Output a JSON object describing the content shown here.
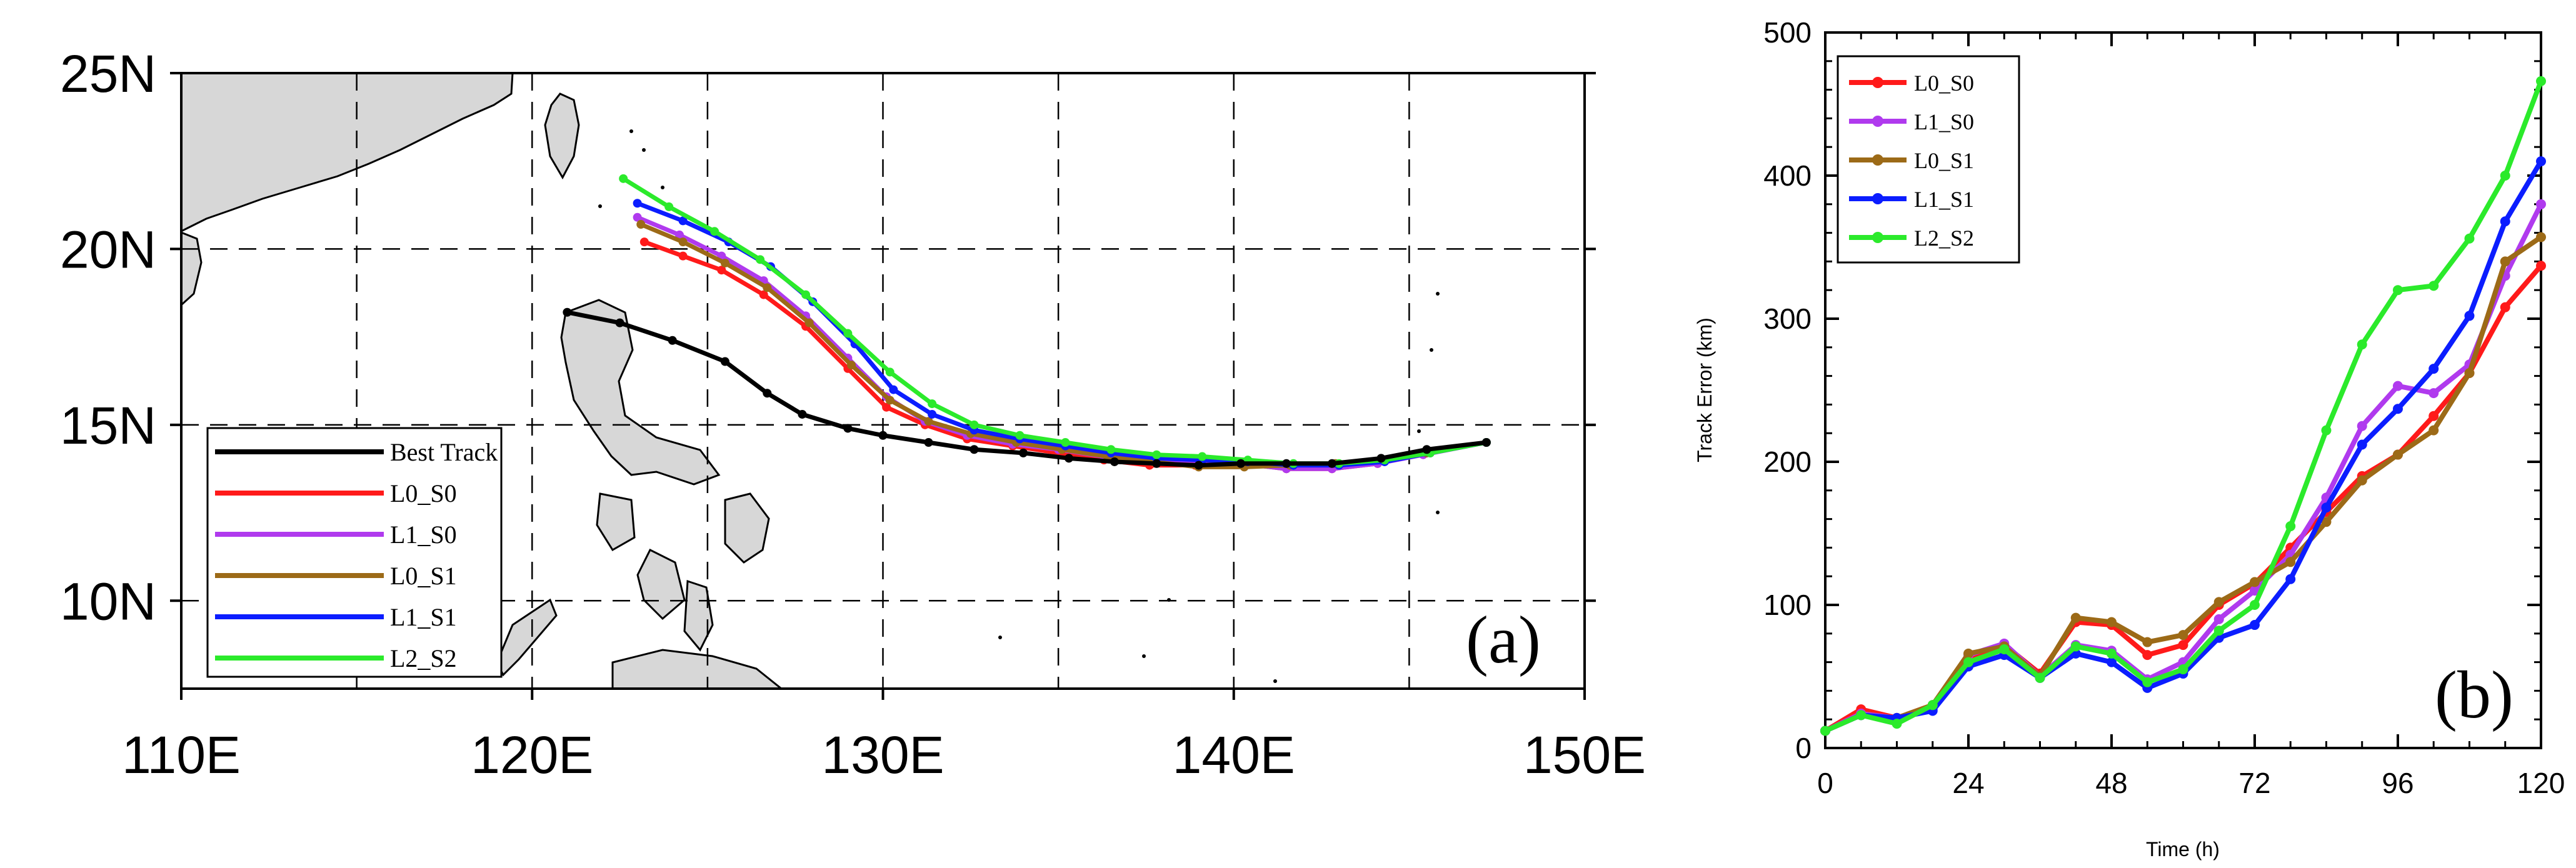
{
  "chart_data": [
    {
      "type": "line",
      "panel_label": "(a)",
      "xlim": [
        110,
        150
      ],
      "ylim": [
        7.5,
        25
      ],
      "x_ticks": [
        {
          "value": 110,
          "label": "110E"
        },
        {
          "value": 120,
          "label": "120E"
        },
        {
          "value": 130,
          "label": "130E"
        },
        {
          "value": 140,
          "label": "140E"
        },
        {
          "value": 150,
          "label": "150E"
        }
      ],
      "y_ticks": [
        {
          "value": 10,
          "label": "10N"
        },
        {
          "value": 15,
          "label": "15N"
        },
        {
          "value": 20,
          "label": "20N"
        },
        {
          "value": 25,
          "label": "25N"
        }
      ],
      "grid_lon": [
        115,
        120,
        125,
        130,
        135,
        140,
        145
      ],
      "grid_lat": [
        10,
        15,
        20
      ],
      "legend": {
        "position": "lower-left",
        "entries": [
          "Best Track",
          "L0_S0",
          "L1_S0",
          "L0_S1",
          "L1_S1",
          "L2_S2"
        ]
      },
      "series": [
        {
          "name": "Best Track",
          "color": "#000000",
          "lon": [
            121.0,
            122.5,
            124.0,
            125.5,
            126.7,
            127.7,
            129.0,
            130.0,
            131.3,
            132.6,
            134.0,
            135.3,
            136.6,
            137.8,
            139.0,
            140.2,
            141.5,
            142.8,
            144.2,
            145.5,
            147.2
          ],
          "lat": [
            18.2,
            17.9,
            17.4,
            16.8,
            15.9,
            15.3,
            14.9,
            14.7,
            14.5,
            14.3,
            14.2,
            14.05,
            13.95,
            13.9,
            13.85,
            13.9,
            13.9,
            13.9,
            14.05,
            14.3,
            14.5
          ]
        },
        {
          "name": "L0_S0",
          "color": "#ff1a1a",
          "lon": [
            123.2,
            124.3,
            125.4,
            126.6,
            127.8,
            129.0,
            130.1,
            131.2,
            132.4,
            133.7,
            135.0,
            136.3,
            137.6,
            138.9,
            140.2,
            141.5,
            142.8,
            144.1,
            145.4,
            147.2
          ],
          "lat": [
            20.2,
            19.8,
            19.4,
            18.7,
            17.8,
            16.6,
            15.5,
            15.0,
            14.6,
            14.4,
            14.2,
            14.0,
            13.85,
            13.85,
            13.9,
            13.75,
            13.75,
            13.9,
            14.2,
            14.5
          ]
        },
        {
          "name": "L1_S0",
          "color": "#b03aee",
          "lon": [
            123.0,
            124.2,
            125.4,
            126.6,
            127.8,
            129.0,
            130.1,
            131.2,
            132.4,
            133.7,
            135.0,
            136.3,
            137.6,
            138.9,
            140.2,
            141.5,
            142.8,
            144.1,
            145.4,
            147.2
          ],
          "lat": [
            20.9,
            20.4,
            19.8,
            19.1,
            18.1,
            16.9,
            15.8,
            15.1,
            14.7,
            14.45,
            14.3,
            14.1,
            14.0,
            13.95,
            13.9,
            13.75,
            13.75,
            13.9,
            14.15,
            14.5
          ]
        },
        {
          "name": "L0_S1",
          "color": "#9c6a17",
          "lon": [
            123.1,
            124.3,
            125.5,
            126.7,
            127.9,
            129.1,
            130.2,
            131.3,
            132.5,
            133.8,
            135.1,
            136.4,
            137.7,
            139.0,
            140.3,
            141.6,
            142.9,
            144.2,
            145.5,
            147.2
          ],
          "lat": [
            20.7,
            20.2,
            19.6,
            18.9,
            17.9,
            16.7,
            15.7,
            15.1,
            14.75,
            14.5,
            14.3,
            14.1,
            13.95,
            13.8,
            13.8,
            13.85,
            13.9,
            14.0,
            14.2,
            14.5
          ]
        },
        {
          "name": "L1_S1",
          "color": "#0b1dff",
          "lon": [
            123.0,
            124.3,
            125.6,
            126.8,
            128.0,
            129.2,
            130.3,
            131.4,
            132.6,
            133.9,
            135.2,
            136.5,
            137.8,
            139.1,
            140.4,
            141.7,
            143.0,
            144.3,
            145.6,
            147.2
          ],
          "lat": [
            21.3,
            20.8,
            20.2,
            19.5,
            18.5,
            17.3,
            16.0,
            15.3,
            14.85,
            14.6,
            14.4,
            14.2,
            14.05,
            14.0,
            13.95,
            13.85,
            13.85,
            13.95,
            14.2,
            14.5
          ]
        },
        {
          "name": "L2_S2",
          "color": "#2bea2b",
          "lon": [
            122.6,
            123.9,
            125.2,
            126.5,
            127.8,
            129.0,
            130.2,
            131.4,
            132.6,
            133.9,
            135.2,
            136.5,
            137.8,
            139.1,
            140.4,
            141.7,
            143.0,
            144.3,
            145.6,
            147.2
          ],
          "lat": [
            22.0,
            21.2,
            20.5,
            19.7,
            18.7,
            17.6,
            16.5,
            15.6,
            15.0,
            14.7,
            14.5,
            14.3,
            14.15,
            14.1,
            14.0,
            13.9,
            13.9,
            14.0,
            14.2,
            14.5
          ]
        }
      ]
    },
    {
      "type": "line",
      "panel_label": "(b)",
      "xlabel": "Time (h)",
      "ylabel": "Track Error (km)",
      "xlim": [
        0,
        120
      ],
      "ylim": [
        0,
        500
      ],
      "x_ticks": [
        0,
        24,
        48,
        72,
        96,
        120
      ],
      "y_ticks": [
        0,
        100,
        200,
        300,
        400,
        500
      ],
      "legend": {
        "position": "top-left",
        "entries": [
          "L0_S0",
          "L1_S0",
          "L0_S1",
          "L1_S1",
          "L2_S2"
        ]
      },
      "x": [
        0,
        6,
        12,
        18,
        24,
        30,
        36,
        42,
        48,
        54,
        60,
        66,
        72,
        78,
        84,
        90,
        96,
        102,
        108,
        114,
        120
      ],
      "series": [
        {
          "name": "L0_S0",
          "color": "#ff1a1a",
          "values": [
            12,
            27,
            21,
            30,
            62,
            72,
            52,
            88,
            86,
            65,
            72,
            100,
            115,
            140,
            165,
            190,
            205,
            232,
            262,
            308,
            337
          ]
        },
        {
          "name": "L1_S0",
          "color": "#b03aee",
          "values": [
            12,
            24,
            21,
            27,
            65,
            73,
            50,
            72,
            68,
            48,
            60,
            90,
            110,
            135,
            175,
            225,
            253,
            248,
            268,
            330,
            380
          ]
        },
        {
          "name": "L0_S1",
          "color": "#9c6a17",
          "values": [
            12,
            23,
            21,
            30,
            66,
            71,
            50,
            91,
            88,
            74,
            79,
            102,
            116,
            130,
            158,
            187,
            205,
            222,
            262,
            340,
            357
          ]
        },
        {
          "name": "L1_S1",
          "color": "#0b1dff",
          "values": [
            12,
            23,
            21,
            26,
            57,
            65,
            49,
            66,
            60,
            42,
            52,
            77,
            86,
            118,
            168,
            212,
            237,
            265,
            302,
            368,
            410
          ]
        },
        {
          "name": "L2_S2",
          "color": "#2bea2b",
          "values": [
            12,
            23,
            17,
            30,
            60,
            69,
            49,
            71,
            66,
            46,
            55,
            82,
            100,
            155,
            222,
            282,
            320,
            323,
            356,
            400,
            466
          ]
        }
      ]
    }
  ]
}
